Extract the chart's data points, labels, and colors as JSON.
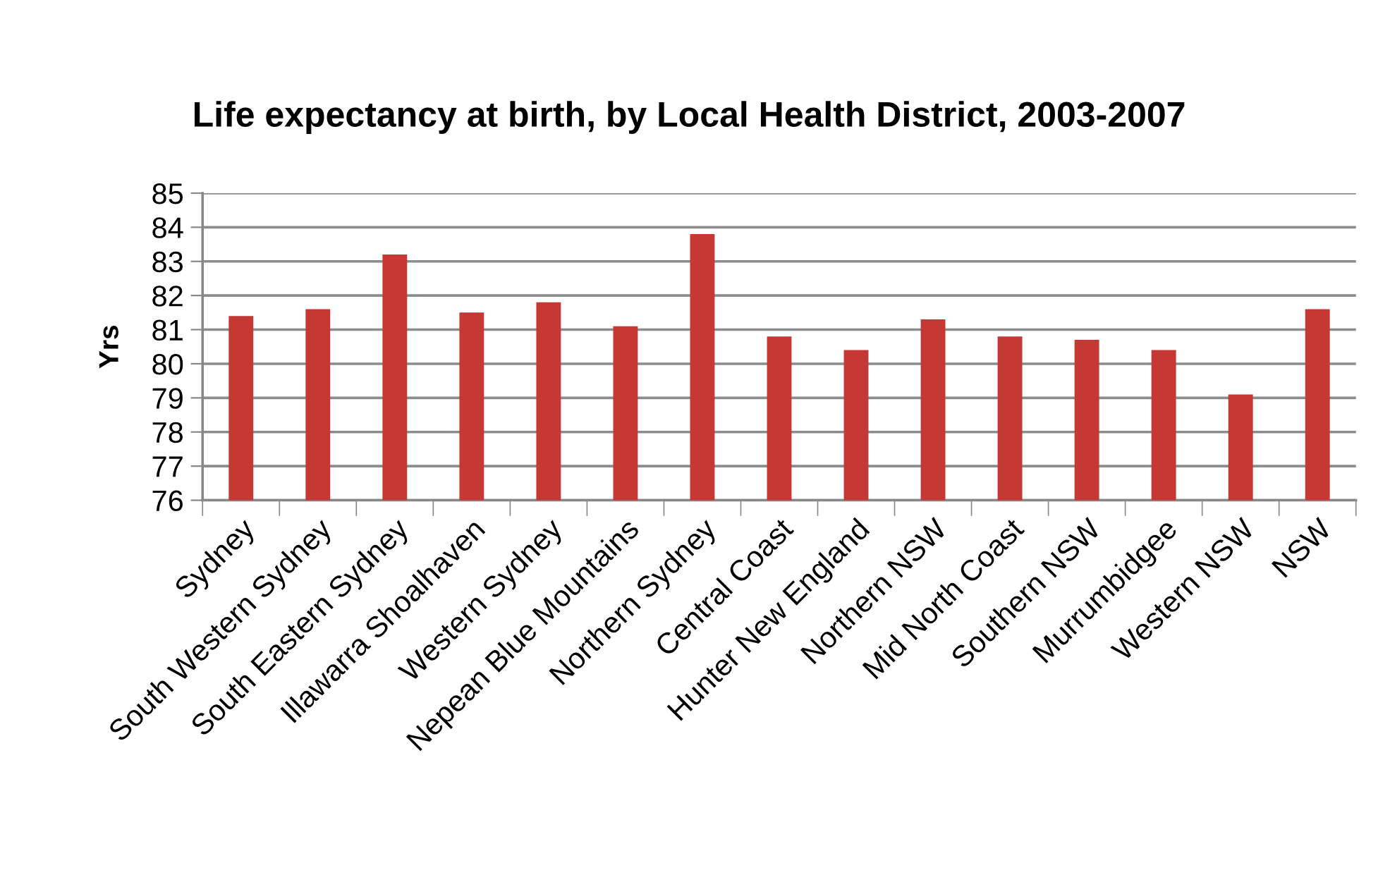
{
  "chart_data": {
    "type": "bar",
    "title": "Life expectancy at birth, by Local Health District, 2003-2007",
    "ylabel": "Yrs",
    "categories": [
      "Sydney",
      "South Western Sydney",
      "South Eastern Sydney",
      "Illawarra Shoalhaven",
      "Western Sydney",
      "Nepean Blue Mountains",
      "Northern Sydney",
      "Central Coast",
      "Hunter New England",
      "Northern NSW",
      "Mid North Coast",
      "Southern NSW",
      "Murrumbidgee",
      "Western NSW",
      "NSW"
    ],
    "values": [
      81.4,
      81.6,
      83.2,
      81.5,
      81.8,
      81.1,
      83.8,
      80.8,
      80.4,
      81.3,
      80.8,
      80.7,
      80.4,
      79.1,
      81.6
    ],
    "color": "#c63834",
    "ylim": [
      76,
      85
    ],
    "yticks": [
      76,
      77,
      78,
      79,
      80,
      81,
      82,
      83,
      84,
      85
    ],
    "grid": "y"
  }
}
